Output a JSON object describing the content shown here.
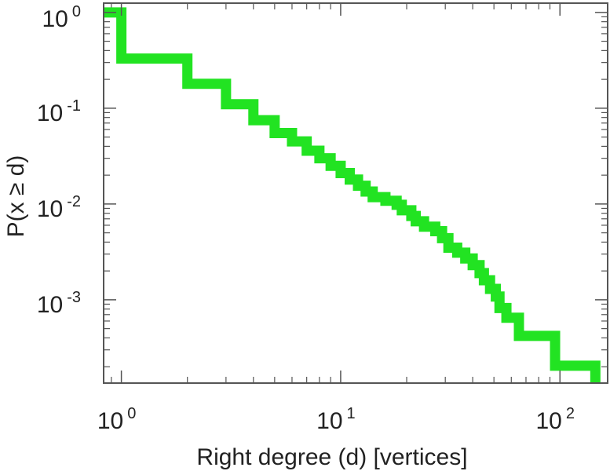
{
  "chart_data": {
    "type": "line",
    "title": "",
    "xlabel": "Right degree (d) [vertices]",
    "ylabel": "P(x ≥ d)",
    "xscale": "log",
    "yscale": "log",
    "xlim": [
      0.83,
      165
    ],
    "ylim": [
      0.000135,
      1.25
    ],
    "grid": false,
    "legend": "none",
    "x_ticks": [
      {
        "base": "10",
        "exp": "0",
        "value": 1
      },
      {
        "base": "10",
        "exp": "1",
        "value": 10
      },
      {
        "base": "10",
        "exp": "2",
        "value": 100
      }
    ],
    "y_ticks": [
      {
        "base": "10",
        "exp": "0",
        "value": 1
      },
      {
        "base": "10",
        "exp": "-1",
        "value": 0.1
      },
      {
        "base": "10",
        "exp": "-2",
        "value": 0.01
      },
      {
        "base": "10",
        "exp": "-3",
        "value": 0.001
      }
    ],
    "series": [
      {
        "color": "#22e322",
        "step": true,
        "points": [
          [
            0.83,
            1.0
          ],
          [
            1,
            1.0
          ],
          [
            1,
            0.33
          ],
          [
            2,
            0.33
          ],
          [
            2,
            0.18
          ],
          [
            3,
            0.18
          ],
          [
            3,
            0.11
          ],
          [
            4,
            0.11
          ],
          [
            4,
            0.075
          ],
          [
            5,
            0.075
          ],
          [
            5,
            0.055
          ],
          [
            6,
            0.055
          ],
          [
            6,
            0.045
          ],
          [
            7,
            0.045
          ],
          [
            7,
            0.036
          ],
          [
            8,
            0.036
          ],
          [
            8,
            0.03
          ],
          [
            9,
            0.03
          ],
          [
            9,
            0.025
          ],
          [
            10,
            0.025
          ],
          [
            10,
            0.021
          ],
          [
            11,
            0.021
          ],
          [
            11,
            0.018
          ],
          [
            12,
            0.018
          ],
          [
            12,
            0.0155
          ],
          [
            13,
            0.0155
          ],
          [
            13,
            0.0135
          ],
          [
            14,
            0.0135
          ],
          [
            14,
            0.0118
          ],
          [
            16,
            0.0118
          ],
          [
            16,
            0.0108
          ],
          [
            18,
            0.0108
          ],
          [
            18,
            0.0098
          ],
          [
            19,
            0.0098
          ],
          [
            19,
            0.0086
          ],
          [
            21,
            0.0086
          ],
          [
            21,
            0.0075
          ],
          [
            22,
            0.0075
          ],
          [
            22,
            0.0066
          ],
          [
            24,
            0.0066
          ],
          [
            24,
            0.0058
          ],
          [
            27,
            0.0058
          ],
          [
            27,
            0.0052
          ],
          [
            29,
            0.0052
          ],
          [
            29,
            0.0044
          ],
          [
            31,
            0.0044
          ],
          [
            31,
            0.0035
          ],
          [
            34,
            0.0035
          ],
          [
            34,
            0.0031
          ],
          [
            37,
            0.0031
          ],
          [
            37,
            0.0027
          ],
          [
            40,
            0.0027
          ],
          [
            40,
            0.0023
          ],
          [
            43,
            0.0023
          ],
          [
            43,
            0.0019
          ],
          [
            45,
            0.0019
          ],
          [
            45,
            0.0016
          ],
          [
            48,
            0.0016
          ],
          [
            48,
            0.0013
          ],
          [
            51,
            0.0013
          ],
          [
            51,
            0.00108
          ],
          [
            53,
            0.00108
          ],
          [
            53,
            0.00082
          ],
          [
            57,
            0.00082
          ],
          [
            57,
            0.00065
          ],
          [
            65,
            0.00065
          ],
          [
            65,
            0.00042
          ],
          [
            95,
            0.00042
          ],
          [
            95,
            0.000205
          ],
          [
            145,
            0.000205
          ],
          [
            145,
            0.000135
          ]
        ]
      }
    ]
  }
}
